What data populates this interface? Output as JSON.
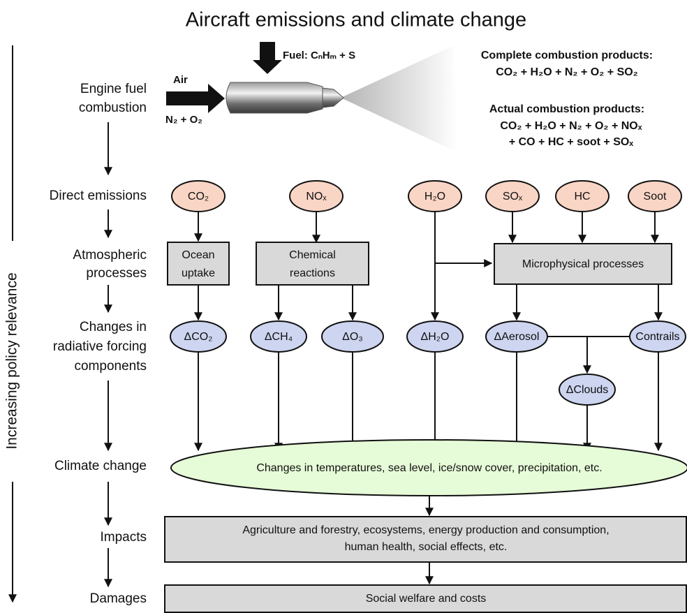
{
  "title": "Aircraft emissions and climate change",
  "side_label": "Increasing policy relevance",
  "stages": [
    {
      "lines": [
        "Engine fuel",
        "combustion"
      ]
    },
    {
      "lines": [
        "Direct emissions"
      ]
    },
    {
      "lines": [
        "Atmospheric",
        "processes"
      ]
    },
    {
      "lines": [
        "Changes in",
        "radiative forcing",
        "components"
      ]
    },
    {
      "lines": [
        "Climate change"
      ]
    },
    {
      "lines": [
        "Impacts"
      ]
    },
    {
      "lines": [
        "Damages"
      ]
    }
  ],
  "engine": {
    "fuel": "Fuel: CₙHₘ + S",
    "air": "Air",
    "air_composition": "N₂ + O₂"
  },
  "products": {
    "complete": {
      "heading": "Complete combustion products:",
      "lines": [
        "CO₂ + H₂O + N₂ + O₂ + SO₂"
      ]
    },
    "actual": {
      "heading": "Actual combustion products:",
      "lines": [
        "CO₂ + H₂O + N₂ + O₂ + NOₓ",
        "+ CO + HC + soot + SOₓ"
      ]
    }
  },
  "emissions": [
    "CO₂",
    "NOₓ",
    "H₂O",
    "SOₓ",
    "HC",
    "Soot"
  ],
  "processes": [
    {
      "lines": [
        "Ocean",
        "uptake"
      ]
    },
    {
      "lines": [
        "Chemical",
        "reactions"
      ]
    },
    {
      "lines": [
        "Microphysical processes"
      ]
    }
  ],
  "forcing": [
    "ΔCO₂",
    "ΔCH₄",
    "ΔO₃",
    "ΔH₂O",
    "ΔAerosol",
    "Contrails",
    "ΔClouds"
  ],
  "climate": "Changes in temperatures, sea level, ice/snow cover, precipitation, etc.",
  "impacts": {
    "lines": [
      "Agriculture and forestry, ecosystems, energy production and consumption,",
      "human health, social effects, etc."
    ]
  },
  "damages": "Social welfare and costs"
}
